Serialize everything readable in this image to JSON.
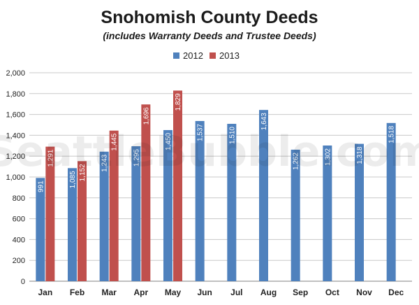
{
  "chart_data": {
    "type": "bar",
    "title": "Snohomish County Deeds",
    "subtitle": "(includes Warranty Deeds and Trustee Deeds)",
    "watermark": "SeattleBubble.com",
    "categories": [
      "Jan",
      "Feb",
      "Mar",
      "Apr",
      "May",
      "Jun",
      "Jul",
      "Aug",
      "Sep",
      "Oct",
      "Nov",
      "Dec"
    ],
    "series": [
      {
        "name": "2012",
        "color": "#4f81bd",
        "values": [
          991,
          1085,
          1243,
          1295,
          1450,
          1537,
          1510,
          1643,
          1262,
          1302,
          1318,
          1518
        ],
        "labels": [
          "991",
          "1,085",
          "1,243",
          "1,295",
          "1,450",
          "1,537",
          "1,510",
          "1,643",
          "1,262",
          "1,302",
          "1,318",
          "1,518"
        ]
      },
      {
        "name": "2013",
        "color": "#c0504d",
        "values": [
          1291,
          1152,
          1445,
          1696,
          1829,
          null,
          null,
          null,
          null,
          null,
          null,
          null
        ],
        "labels": [
          "1,291",
          "1,152",
          "1,445",
          "1,696",
          "1,829",
          null,
          null,
          null,
          null,
          null,
          null,
          null
        ]
      }
    ],
    "y_ticks": [
      "0",
      "200",
      "400",
      "600",
      "800",
      "1,000",
      "1,200",
      "1,400",
      "1,600",
      "1,800",
      "2,000"
    ],
    "ylim": [
      0,
      2000
    ],
    "grid": true,
    "legend": "top-center",
    "xlabel": "",
    "ylabel": ""
  }
}
